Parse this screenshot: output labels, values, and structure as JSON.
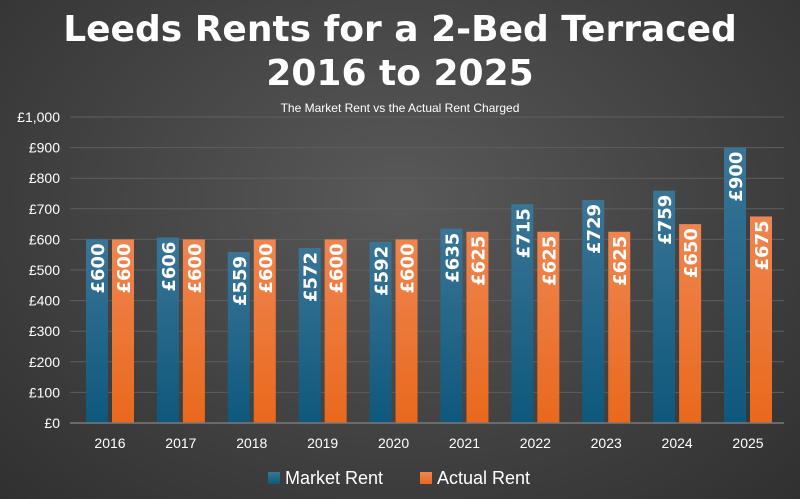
{
  "chart_data": {
    "type": "bar",
    "title_line1": "Leeds Rents for a 2-Bed Terraced",
    "title_line2": "2016 to 2025",
    "subtitle": "The Market Rent vs the Actual Rent Charged",
    "categories": [
      "2016",
      "2017",
      "2018",
      "2019",
      "2020",
      "2021",
      "2022",
      "2023",
      "2024",
      "2025"
    ],
    "series": [
      {
        "name": "Market Rent",
        "color": "#1f5f80",
        "values": [
          600,
          606,
          559,
          572,
          592,
          635,
          715,
          729,
          759,
          900
        ]
      },
      {
        "name": "Actual Rent",
        "color": "#ef7a30",
        "values": [
          600,
          600,
          600,
          600,
          600,
          625,
          625,
          625,
          650,
          675
        ]
      }
    ],
    "ylim": [
      0,
      1000
    ],
    "yticks": [
      "£0",
      "£100",
      "£200",
      "£300",
      "£400",
      "£500",
      "£600",
      "£700",
      "£800",
      "£900",
      "£1,000"
    ],
    "value_prefix": "£",
    "grid": true,
    "legend": "bottom"
  }
}
